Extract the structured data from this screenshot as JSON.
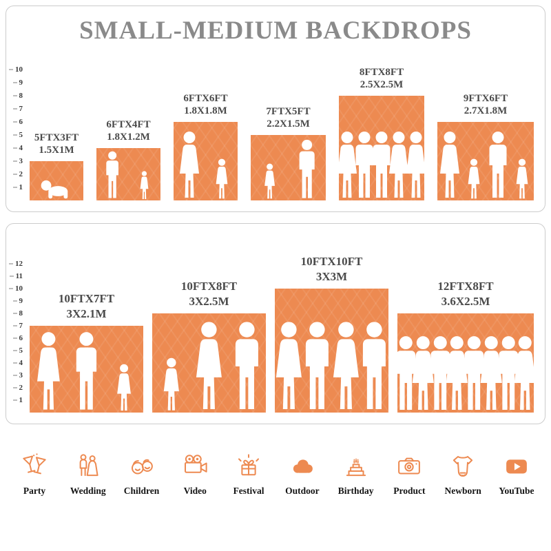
{
  "colors": {
    "bar": "#ED8A51",
    "icon": "#ED8A51",
    "title": "#8A8A8A",
    "label": "#4A4A4A",
    "ruler": "#3A3A3A",
    "panel_border": "#CCCCCC"
  },
  "top_panel": {
    "title": "SMALL-MEDIUM BACKDROPS",
    "ruler_numbers": [
      1,
      2,
      3,
      4,
      5,
      6,
      7,
      8,
      9,
      10
    ],
    "bars": [
      {
        "size_ft": "5FTX3FT",
        "size_m": "1.5X1M",
        "width_ft": 5,
        "height_ft": 3,
        "figures": [
          "baby"
        ]
      },
      {
        "size_ft": "6FTX4FT",
        "size_m": "1.8X1.2M",
        "width_ft": 6,
        "height_ft": 4,
        "figures": [
          "man",
          "girl"
        ]
      },
      {
        "size_ft": "6FTX6FT",
        "size_m": "1.8X1.8M",
        "width_ft": 6,
        "height_ft": 6,
        "figures": [
          "woman",
          "girl"
        ]
      },
      {
        "size_ft": "7FTX5FT",
        "size_m": "2.2X1.5M",
        "width_ft": 7,
        "height_ft": 5,
        "figures": [
          "girl",
          "man"
        ]
      },
      {
        "size_ft": "8FTX8FT",
        "size_m": "2.5X2.5M",
        "width_ft": 8,
        "height_ft": 8,
        "figures": [
          "woman",
          "man",
          "man",
          "woman",
          "woman"
        ]
      },
      {
        "size_ft": "9FTX6FT",
        "size_m": "2.7X1.8M",
        "width_ft": 9,
        "height_ft": 6,
        "figures": [
          "woman",
          "girl",
          "man",
          "girl"
        ]
      }
    ]
  },
  "bottom_panel": {
    "ruler_numbers": [
      1,
      2,
      3,
      4,
      5,
      6,
      7,
      8,
      9,
      10,
      11,
      12
    ],
    "bars": [
      {
        "size_ft": "10FTX7FT",
        "size_m": "3X2.1M",
        "width_ft": 10,
        "height_ft": 7,
        "figures": [
          "woman",
          "man",
          "girl"
        ]
      },
      {
        "size_ft": "10FTX8FT",
        "size_m": "3X2.5M",
        "width_ft": 10,
        "height_ft": 8,
        "figures": [
          "girl",
          "woman",
          "man"
        ]
      },
      {
        "size_ft": "10FTX10FT",
        "size_m": "3X3M",
        "width_ft": 10,
        "height_ft": 10,
        "figures": [
          "woman",
          "man",
          "woman",
          "man"
        ]
      },
      {
        "size_ft": "12FTX8FT",
        "size_m": "3.6X2.5M",
        "width_ft": 12,
        "height_ft": 8,
        "figures": [
          "man",
          "woman",
          "man",
          "woman",
          "man",
          "woman",
          "man",
          "woman"
        ]
      }
    ]
  },
  "categories": [
    {
      "label": "Party",
      "icon": "party-icon"
    },
    {
      "label": "Wedding",
      "icon": "wedding-icon"
    },
    {
      "label": "Children",
      "icon": "children-icon"
    },
    {
      "label": "Video",
      "icon": "video-icon"
    },
    {
      "label": "Festival",
      "icon": "festival-icon"
    },
    {
      "label": "Outdoor",
      "icon": "outdoor-icon"
    },
    {
      "label": "Birthday",
      "icon": "birthday-icon"
    },
    {
      "label": "Product",
      "icon": "product-icon"
    },
    {
      "label": "Newborn",
      "icon": "newborn-icon"
    },
    {
      "label": "YouTube",
      "icon": "youtube-icon"
    }
  ]
}
